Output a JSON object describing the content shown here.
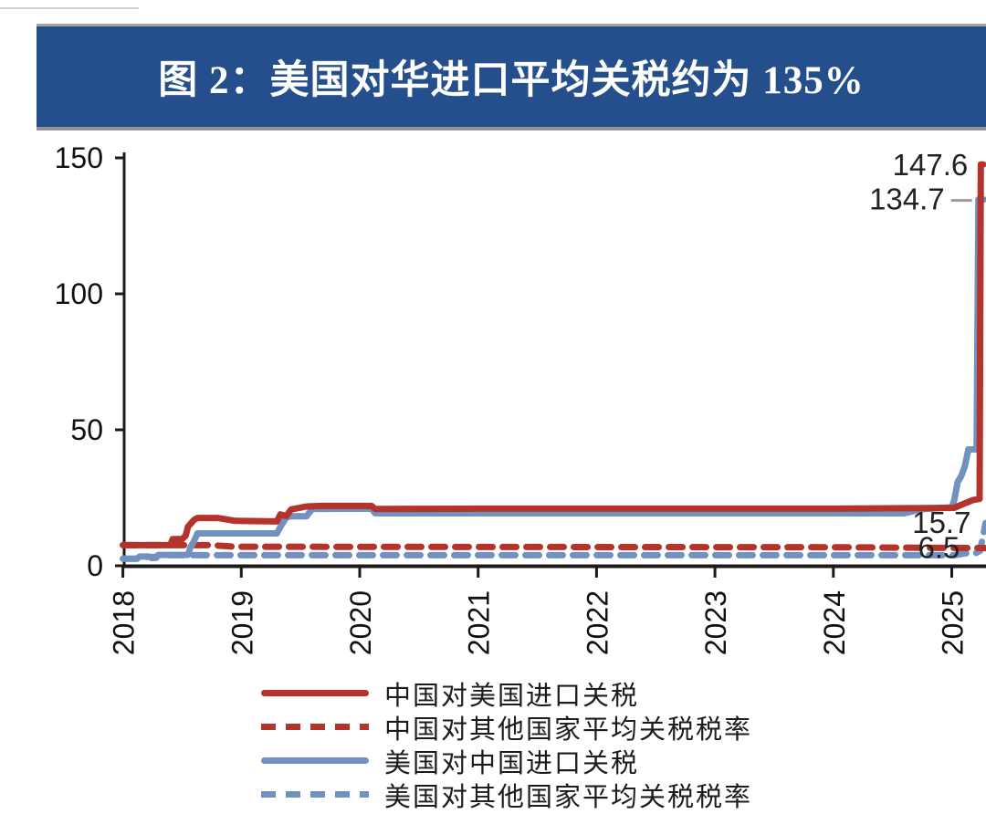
{
  "banner": {
    "title": "图 2：美国对华进口平均关税约为 135%",
    "bg_color": "#254e8c",
    "text_color": "#ffffff"
  },
  "chart_data": {
    "type": "line",
    "title": "图 2：美国对华进口平均关税约为 135%",
    "xlabel": "",
    "ylabel": "",
    "grid": false,
    "legend_position": "bottom",
    "x_axis": {
      "ticks": [
        2018,
        2019,
        2020,
        2021,
        2022,
        2023,
        2024,
        2025
      ],
      "range": [
        2018,
        2025.32
      ]
    },
    "y_axis": {
      "ticks": [
        0,
        50,
        100,
        150
      ],
      "range": [
        0,
        152
      ]
    },
    "axis_color": "#1a1a1a",
    "series": [
      {
        "id": "china-on-us",
        "name": "中国对美国进口关税",
        "color": "#b4332a",
        "style": "solid",
        "final_value": 147.6,
        "points": [
          [
            2018.0,
            7.6
          ],
          [
            2018.4,
            7.6
          ],
          [
            2018.42,
            9.8
          ],
          [
            2018.5,
            9.8
          ],
          [
            2018.53,
            11.0
          ],
          [
            2018.55,
            14.4
          ],
          [
            2018.6,
            16.8
          ],
          [
            2018.63,
            17.6
          ],
          [
            2018.8,
            17.6
          ],
          [
            2018.95,
            16.5
          ],
          [
            2019.3,
            16.3
          ],
          [
            2019.33,
            18.9
          ],
          [
            2019.38,
            18.3
          ],
          [
            2019.42,
            20.7
          ],
          [
            2019.55,
            21.8
          ],
          [
            2019.68,
            22.0
          ],
          [
            2020.1,
            22.0
          ],
          [
            2020.13,
            20.9
          ],
          [
            2021.0,
            21.0
          ],
          [
            2024.0,
            21.0
          ],
          [
            2025.02,
            21.3
          ],
          [
            2025.1,
            22.8
          ],
          [
            2025.18,
            24.2
          ],
          [
            2025.235,
            24.6
          ],
          [
            2025.245,
            147.6
          ],
          [
            2025.265,
            147.6
          ]
        ]
      },
      {
        "id": "china-on-row",
        "name": "中国对其他国家平均关税税率",
        "color": "#b4332a",
        "style": "dashed",
        "final_value": 6.5,
        "points": [
          [
            2018.0,
            7.6
          ],
          [
            2018.75,
            7.6
          ],
          [
            2018.95,
            7.0
          ],
          [
            2024.0,
            6.8
          ],
          [
            2025.3,
            6.5
          ]
        ]
      },
      {
        "id": "us-on-china",
        "name": "美国对中国进口关税",
        "color": "#7191c1",
        "style": "solid",
        "final_value": 134.7,
        "points": [
          [
            2018.0,
            2.6
          ],
          [
            2018.12,
            2.6
          ],
          [
            2018.14,
            3.4
          ],
          [
            2018.22,
            3.4
          ],
          [
            2018.24,
            2.9
          ],
          [
            2018.28,
            2.9
          ],
          [
            2018.3,
            4.0
          ],
          [
            2018.55,
            4.0
          ],
          [
            2018.57,
            6.7
          ],
          [
            2018.6,
            9.0
          ],
          [
            2018.63,
            11.9
          ],
          [
            2019.3,
            11.9
          ],
          [
            2019.34,
            15.0
          ],
          [
            2019.38,
            17.8
          ],
          [
            2019.42,
            18.2
          ],
          [
            2019.55,
            18.2
          ],
          [
            2019.6,
            20.9
          ],
          [
            2020.1,
            21.0
          ],
          [
            2020.13,
            19.3
          ],
          [
            2024.6,
            19.3
          ],
          [
            2024.75,
            20.8
          ],
          [
            2025.0,
            21.5
          ],
          [
            2025.02,
            24.0
          ],
          [
            2025.05,
            30.8
          ],
          [
            2025.08,
            33.0
          ],
          [
            2025.11,
            36.5
          ],
          [
            2025.14,
            42.8
          ],
          [
            2025.21,
            42.8
          ],
          [
            2025.225,
            134.7
          ],
          [
            2025.27,
            134.7
          ]
        ]
      },
      {
        "id": "us-on-row",
        "name": "美国对其他国家平均关税税率",
        "color": "#7191c1",
        "style": "dashed",
        "final_value": 15.7,
        "points": [
          [
            2018.0,
            2.6
          ],
          [
            2018.12,
            2.6
          ],
          [
            2018.15,
            3.3
          ],
          [
            2018.28,
            3.3
          ],
          [
            2018.3,
            3.9
          ],
          [
            2025.02,
            3.9
          ],
          [
            2025.12,
            4.6
          ],
          [
            2025.2,
            4.6
          ],
          [
            2025.24,
            5.5
          ],
          [
            2025.285,
            15.7
          ]
        ]
      }
    ],
    "annotations": [
      {
        "text": "147.6",
        "t": 2025.245,
        "v": 147.6,
        "leader": false
      },
      {
        "text": "134.7",
        "t": 2025.225,
        "v": 134.7,
        "leader": true
      },
      {
        "text": "15.7",
        "t": 2025.285,
        "v": 15.7,
        "leader": false
      },
      {
        "text": "6.5",
        "t": 2025.3,
        "v": 6.5,
        "leader": false
      }
    ]
  }
}
